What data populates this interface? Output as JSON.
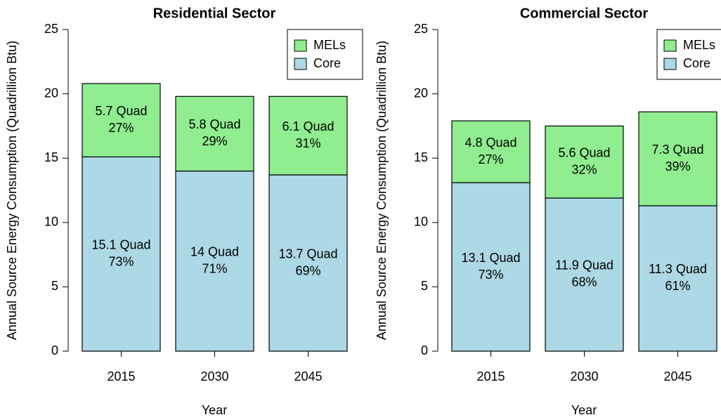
{
  "chart_data": [
    {
      "type": "bar",
      "stacked": true,
      "title": "Residential Sector",
      "x_label": "Year",
      "y_label": "Annual Source Energy Consumption (Quadrillion Btu)",
      "categories": [
        "2015",
        "2030",
        "2045"
      ],
      "series": [
        {
          "name": "Core",
          "color": "#add8e6",
          "values": [
            15.1,
            14,
            13.7
          ],
          "value_labels": [
            "15.1 Quad",
            "14 Quad",
            "13.7 Quad"
          ],
          "share_labels": [
            "73%",
            "71%",
            "69%"
          ]
        },
        {
          "name": "MELs",
          "color": "#90ee90",
          "values": [
            5.7,
            5.8,
            6.1
          ],
          "value_labels": [
            "5.7 Quad",
            "5.8 Quad",
            "6.1 Quad"
          ],
          "share_labels": [
            "27%",
            "29%",
            "31%"
          ]
        }
      ],
      "ylim": [
        0,
        25
      ],
      "yticks": [
        0,
        5,
        10,
        15,
        20,
        25
      ],
      "legend": "top-right"
    },
    {
      "type": "bar",
      "stacked": true,
      "title": "Commercial Sector",
      "x_label": "Year",
      "y_label": "Annual Source Energy Consumption (Quadrillion Btu)",
      "categories": [
        "2015",
        "2030",
        "2045"
      ],
      "series": [
        {
          "name": "Core",
          "color": "#add8e6",
          "values": [
            13.1,
            11.9,
            11.3
          ],
          "value_labels": [
            "13.1 Quad",
            "11.9 Quad",
            "11.3 Quad"
          ],
          "share_labels": [
            "73%",
            "68%",
            "61%"
          ]
        },
        {
          "name": "MELs",
          "color": "#90ee90",
          "values": [
            4.8,
            5.6,
            7.3
          ],
          "value_labels": [
            "4.8 Quad",
            "5.6 Quad",
            "7.3 Quad"
          ],
          "share_labels": [
            "27%",
            "32%",
            "39%"
          ]
        }
      ],
      "ylim": [
        0,
        25
      ],
      "yticks": [
        0,
        5,
        10,
        15,
        20,
        25
      ],
      "legend": "top-right"
    }
  ]
}
